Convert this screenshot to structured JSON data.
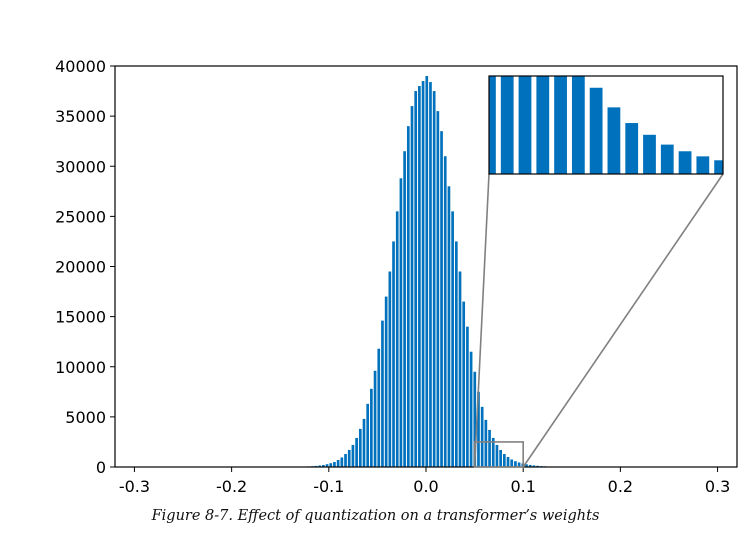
{
  "caption": "Figure 8-7. Effect of quantization on a transformer’s weights",
  "colors": {
    "bar": "#0072bd",
    "axis": "#000000",
    "zoom_box": "#808080"
  },
  "chart_data": {
    "type": "bar",
    "subtype": "histogram",
    "xlim": [
      -0.32,
      0.32
    ],
    "ylim": [
      0,
      40000
    ],
    "x_ticks": [
      -0.3,
      -0.2,
      -0.1,
      0.0,
      0.1,
      0.2,
      0.3
    ],
    "x_tick_labels": [
      "-0.3",
      "-0.2",
      "-0.1",
      "0.0",
      "0.1",
      "0.2",
      "0.3"
    ],
    "y_ticks": [
      0,
      5000,
      10000,
      15000,
      20000,
      25000,
      30000,
      35000,
      40000
    ],
    "y_tick_labels": [
      "0",
      "5000",
      "10000",
      "15000",
      "20000",
      "25000",
      "30000",
      "35000",
      "40000"
    ],
    "bin_width": 0.0038,
    "bins": [
      {
        "x": -0.06,
        "y": 6300
      },
      {
        "x": -0.0562,
        "y": 7800
      },
      {
        "x": -0.0524,
        "y": 9600
      },
      {
        "x": -0.0486,
        "y": 11800
      },
      {
        "x": -0.0448,
        "y": 14600
      },
      {
        "x": -0.041,
        "y": 17000
      },
      {
        "x": -0.0372,
        "y": 19500
      },
      {
        "x": -0.0334,
        "y": 22500
      },
      {
        "x": -0.0296,
        "y": 25500
      },
      {
        "x": -0.0258,
        "y": 28800
      },
      {
        "x": -0.022,
        "y": 31500
      },
      {
        "x": -0.0182,
        "y": 34000
      },
      {
        "x": -0.0144,
        "y": 36000
      },
      {
        "x": -0.0106,
        "y": 37500
      },
      {
        "x": -0.0068,
        "y": 38000
      },
      {
        "x": -0.003,
        "y": 38500
      },
      {
        "x": 0.0008,
        "y": 39000
      },
      {
        "x": 0.0046,
        "y": 38400
      },
      {
        "x": 0.0084,
        "y": 37500
      },
      {
        "x": 0.0122,
        "y": 35500
      },
      {
        "x": 0.016,
        "y": 33500
      },
      {
        "x": 0.0198,
        "y": 31000
      },
      {
        "x": 0.0236,
        "y": 28000
      },
      {
        "x": 0.0274,
        "y": 25500
      },
      {
        "x": 0.0312,
        "y": 22500
      },
      {
        "x": 0.035,
        "y": 19500
      },
      {
        "x": 0.0388,
        "y": 16500
      },
      {
        "x": 0.0426,
        "y": 14000
      },
      {
        "x": 0.0464,
        "y": 11500
      },
      {
        "x": 0.0502,
        "y": 9500
      },
      {
        "x": 0.054,
        "y": 7500
      },
      {
        "x": 0.0578,
        "y": 6000
      },
      {
        "x": 0.0616,
        "y": 4700
      },
      {
        "x": 0.0654,
        "y": 3700
      },
      {
        "x": 0.0692,
        "y": 2900
      },
      {
        "x": 0.073,
        "y": 2200
      },
      {
        "x": 0.0768,
        "y": 1700
      },
      {
        "x": 0.0806,
        "y": 1300
      },
      {
        "x": 0.0844,
        "y": 1000
      },
      {
        "x": 0.0882,
        "y": 750
      },
      {
        "x": 0.092,
        "y": 580
      },
      {
        "x": 0.0958,
        "y": 450
      },
      {
        "x": 0.0996,
        "y": 350
      },
      {
        "x": 0.1034,
        "y": 270
      },
      {
        "x": 0.1072,
        "y": 210
      },
      {
        "x": 0.111,
        "y": 160
      },
      {
        "x": 0.1148,
        "y": 120
      },
      {
        "x": 0.1186,
        "y": 90
      },
      {
        "x": 0.1224,
        "y": 70
      },
      {
        "x": 0.1262,
        "y": 50
      },
      {
        "x": 0.13,
        "y": 40
      },
      {
        "x": 0.14,
        "y": 25
      },
      {
        "x": 0.15,
        "y": 15
      },
      {
        "x": -0.0638,
        "y": 4800
      },
      {
        "x": -0.0676,
        "y": 3800
      },
      {
        "x": -0.0714,
        "y": 2900
      },
      {
        "x": -0.0752,
        "y": 2200
      },
      {
        "x": -0.079,
        "y": 1700
      },
      {
        "x": -0.0828,
        "y": 1300
      },
      {
        "x": -0.0866,
        "y": 950
      },
      {
        "x": -0.0904,
        "y": 700
      },
      {
        "x": -0.0942,
        "y": 500
      },
      {
        "x": -0.098,
        "y": 380
      },
      {
        "x": -0.1018,
        "y": 280
      },
      {
        "x": -0.1056,
        "y": 200
      },
      {
        "x": -0.1094,
        "y": 150
      },
      {
        "x": -0.1132,
        "y": 110
      },
      {
        "x": -0.117,
        "y": 80
      },
      {
        "x": -0.1208,
        "y": 60
      },
      {
        "x": -0.13,
        "y": 40
      },
      {
        "x": -0.14,
        "y": 25
      },
      {
        "x": -0.15,
        "y": 15
      }
    ],
    "inset": {
      "zoom_xlim": [
        0.05,
        0.1
      ],
      "zoom_ylim": [
        0,
        2500
      ],
      "grid": false,
      "placement": "top-right"
    },
    "grid": false,
    "legend": false
  }
}
